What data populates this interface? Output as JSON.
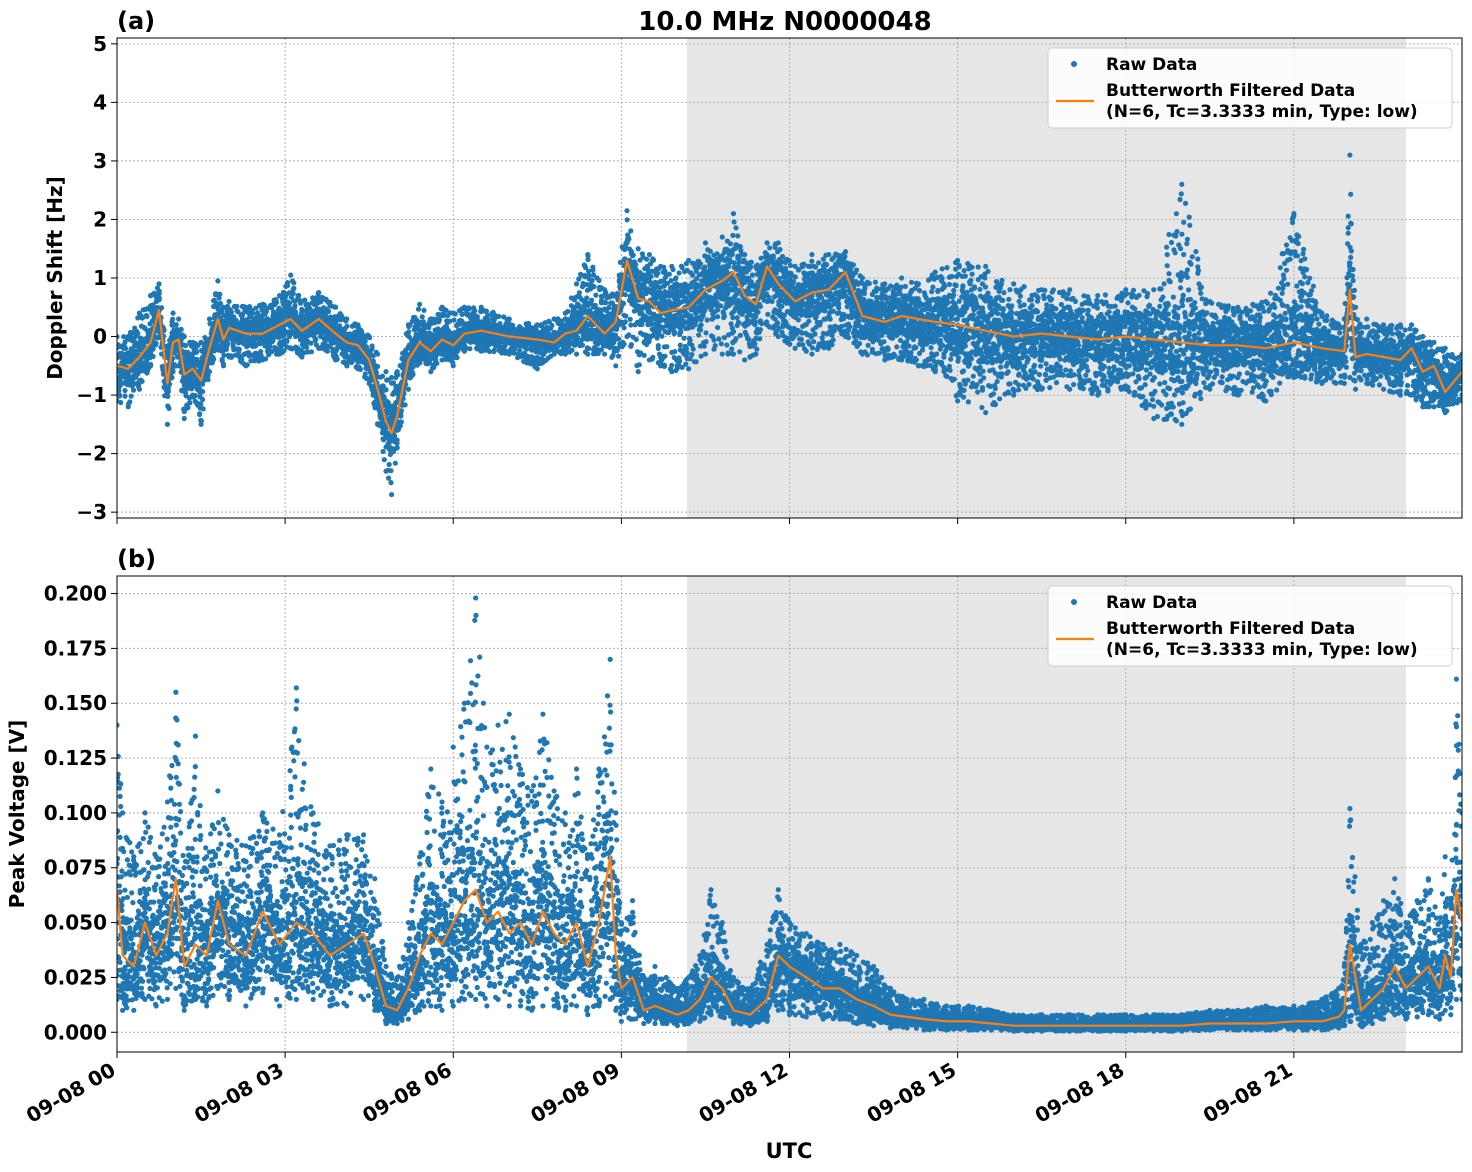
{
  "figure": {
    "title": "10.0 MHz N0000048",
    "xlabel": "UTC",
    "x_tick_labels": [
      "09-08 00",
      "09-08 03",
      "09-08 06",
      "09-08 09",
      "09-08 12",
      "09-08 15",
      "09-08 18",
      "09-08 21"
    ],
    "shaded_region_hours": [
      10.17,
      23.0
    ],
    "colors": {
      "raw": "#1f77b4",
      "filtered": "#ff7f0e",
      "shade": "#e6e6e6",
      "grid": "#b0b0b0"
    }
  },
  "chart_data": [
    {
      "type": "scatter",
      "panel_label": "(a)",
      "ylabel": "Doppler Shift [Hz]",
      "xlim_hours": [
        0,
        24
      ],
      "ylim": [
        -3.1,
        5.1
      ],
      "yticks": [
        -3,
        -2,
        -1,
        0,
        1,
        2,
        3,
        4,
        5
      ],
      "ytick_labels": [
        "−3",
        "−2",
        "−1",
        "0",
        "1",
        "2",
        "3",
        "4",
        "5"
      ],
      "grid": true,
      "legend_position": "top-right",
      "legend": [
        "Raw Data",
        "Butterworth Filtered Data",
        "(N=6, Tc=3.3333 min, Type: low)"
      ],
      "series": [
        {
          "name": "Butterworth Filtered Data",
          "kind": "line",
          "x_hours": [
            0,
            0.2,
            0.4,
            0.6,
            0.75,
            0.9,
            1.0,
            1.1,
            1.2,
            1.35,
            1.5,
            1.65,
            1.8,
            1.9,
            2.0,
            2.3,
            2.6,
            2.9,
            3.1,
            3.3,
            3.6,
            3.9,
            4.1,
            4.3,
            4.5,
            4.65,
            4.8,
            4.9,
            5.0,
            5.2,
            5.4,
            5.6,
            5.8,
            6.0,
            6.2,
            6.5,
            7.0,
            7.5,
            7.8,
            8.0,
            8.2,
            8.4,
            8.7,
            8.9,
            9.1,
            9.3,
            9.5,
            9.7,
            9.9,
            10.2,
            10.5,
            10.8,
            11.0,
            11.2,
            11.4,
            11.6,
            11.8,
            12.1,
            12.4,
            12.7,
            13.0,
            13.3,
            13.7,
            14.0,
            14.3,
            14.6,
            15.0,
            15.5,
            16.0,
            16.5,
            17.0,
            17.5,
            18.0,
            18.5,
            19.0,
            19.5,
            20.0,
            20.5,
            21.0,
            21.5,
            21.9,
            22.0,
            22.1,
            22.3,
            22.6,
            22.9,
            23.1,
            23.3,
            23.5,
            23.7,
            24.0
          ],
          "y": [
            -0.5,
            -0.55,
            -0.35,
            -0.1,
            0.45,
            -0.8,
            -0.1,
            -0.05,
            -0.65,
            -0.55,
            -0.75,
            -0.2,
            0.3,
            -0.05,
            0.15,
            0.05,
            0.05,
            0.2,
            0.3,
            0.1,
            0.3,
            0.05,
            -0.1,
            -0.15,
            -0.4,
            -0.9,
            -1.45,
            -1.65,
            -1.35,
            -0.4,
            -0.1,
            -0.25,
            -0.05,
            -0.15,
            0.05,
            0.1,
            0.0,
            -0.05,
            -0.1,
            0.05,
            0.1,
            0.35,
            0.05,
            0.25,
            1.3,
            0.65,
            0.6,
            0.4,
            0.45,
            0.5,
            0.8,
            0.95,
            1.1,
            0.7,
            0.55,
            1.2,
            0.9,
            0.6,
            0.75,
            0.8,
            1.1,
            0.35,
            0.25,
            0.35,
            0.3,
            0.25,
            0.2,
            0.1,
            0.0,
            0.05,
            0.0,
            -0.05,
            0.0,
            -0.05,
            -0.1,
            -0.15,
            -0.15,
            -0.2,
            -0.1,
            -0.2,
            -0.25,
            0.8,
            -0.35,
            -0.3,
            -0.35,
            -0.4,
            -0.2,
            -0.6,
            -0.5,
            -0.95,
            -0.6
          ]
        },
        {
          "name": "Raw Data",
          "kind": "points",
          "x_hours": [
            0,
            0.2,
            0.4,
            0.6,
            0.75,
            0.9,
            1.0,
            1.1,
            1.2,
            1.35,
            1.5,
            1.65,
            1.8,
            1.9,
            2.0,
            2.3,
            2.6,
            2.9,
            3.1,
            3.3,
            3.6,
            3.9,
            4.1,
            4.3,
            4.5,
            4.65,
            4.8,
            4.9,
            5.0,
            5.2,
            5.4,
            5.6,
            5.8,
            6.0,
            6.2,
            6.5,
            7.0,
            7.5,
            7.8,
            8.0,
            8.2,
            8.4,
            8.7,
            8.9,
            9.1,
            9.3,
            9.5,
            9.7,
            9.9,
            10.2,
            10.5,
            10.8,
            11.0,
            11.2,
            11.4,
            11.6,
            11.8,
            12.1,
            12.4,
            12.7,
            13.0,
            13.3,
            13.7,
            14.0,
            14.3,
            14.6,
            15.0,
            15.5,
            16.0,
            16.5,
            17.0,
            17.5,
            18.0,
            18.5,
            19.0,
            19.5,
            20.0,
            20.5,
            21.0,
            21.5,
            21.9,
            22.0,
            22.1,
            22.3,
            22.6,
            22.9,
            23.1,
            23.3,
            23.5,
            23.7,
            24.0
          ],
          "y_low": [
            -1.1,
            -1.2,
            -0.9,
            -0.5,
            0.0,
            -1.5,
            -0.6,
            -0.5,
            -1.4,
            -1.0,
            -1.5,
            -0.6,
            -0.2,
            -0.5,
            -0.35,
            -0.5,
            -0.4,
            -0.3,
            -0.2,
            -0.35,
            -0.2,
            -0.4,
            -0.5,
            -0.55,
            -0.8,
            -1.5,
            -2.3,
            -2.7,
            -1.9,
            -0.9,
            -0.45,
            -0.6,
            -0.4,
            -0.5,
            -0.25,
            -0.25,
            -0.3,
            -0.55,
            -0.3,
            -0.3,
            -0.3,
            -0.3,
            -0.3,
            -0.5,
            0.0,
            -0.6,
            -0.4,
            -0.5,
            -0.6,
            -0.55,
            -0.3,
            -0.3,
            -0.3,
            -0.4,
            -0.3,
            0.2,
            0.0,
            -0.2,
            -0.3,
            -0.2,
            0.0,
            -0.3,
            -0.4,
            -0.4,
            -0.5,
            -0.6,
            -1.1,
            -1.3,
            -1.0,
            -0.9,
            -0.9,
            -1.0,
            -0.9,
            -1.4,
            -1.5,
            -0.9,
            -1.0,
            -1.1,
            -0.7,
            -0.8,
            -0.8,
            -0.7,
            -0.9,
            -0.8,
            -0.9,
            -1.0,
            -1.0,
            -1.2,
            -1.2,
            -1.3,
            -1.1
          ],
          "y_high": [
            0.0,
            0.0,
            0.4,
            0.7,
            0.9,
            -0.2,
            0.4,
            0.3,
            0.0,
            -0.1,
            -0.1,
            0.3,
            0.95,
            0.5,
            0.6,
            0.5,
            0.55,
            0.7,
            1.05,
            0.6,
            0.75,
            0.5,
            0.3,
            0.2,
            0.0,
            -0.3,
            -0.6,
            -0.7,
            -0.6,
            0.2,
            0.55,
            0.3,
            0.5,
            0.4,
            0.5,
            0.5,
            0.3,
            0.2,
            0.3,
            0.4,
            0.9,
            1.4,
            0.8,
            0.7,
            2.15,
            1.5,
            1.4,
            1.2,
            1.2,
            1.3,
            1.6,
            1.7,
            2.1,
            1.4,
            1.2,
            1.6,
            1.6,
            1.2,
            1.4,
            1.4,
            1.45,
            1.0,
            0.9,
            1.0,
            0.9,
            1.1,
            1.3,
            1.2,
            0.9,
            0.8,
            0.8,
            0.7,
            0.8,
            0.8,
            2.6,
            0.6,
            0.5,
            0.6,
            2.1,
            0.4,
            0.3,
            3.1,
            0.5,
            0.3,
            0.2,
            0.2,
            0.2,
            0.0,
            -0.1,
            -0.2,
            -0.3
          ]
        }
      ]
    },
    {
      "type": "scatter",
      "panel_label": "(b)",
      "ylabel": "Peak Voltage [V]",
      "xlim_hours": [
        0,
        24
      ],
      "ylim": [
        -0.009,
        0.208
      ],
      "yticks": [
        0.0,
        0.025,
        0.05,
        0.075,
        0.1,
        0.125,
        0.15,
        0.175,
        0.2
      ],
      "ytick_labels": [
        "0.000",
        "0.025",
        "0.050",
        "0.075",
        "0.100",
        "0.125",
        "0.150",
        "0.175",
        "0.200"
      ],
      "grid": true,
      "legend_position": "top-right",
      "legend": [
        "Raw Data",
        "Butterworth Filtered Data",
        "(N=6, Tc=3.3333 min, Type: low)"
      ],
      "series": [
        {
          "name": "Butterworth Filtered Data",
          "kind": "line",
          "x_hours": [
            0,
            0.1,
            0.3,
            0.5,
            0.7,
            0.9,
            1.05,
            1.2,
            1.4,
            1.6,
            1.8,
            2.0,
            2.3,
            2.6,
            2.9,
            3.2,
            3.5,
            3.8,
            4.1,
            4.4,
            4.6,
            4.8,
            5.0,
            5.2,
            5.4,
            5.6,
            5.8,
            6.0,
            6.2,
            6.4,
            6.6,
            6.8,
            7.0,
            7.2,
            7.4,
            7.6,
            7.8,
            8.0,
            8.2,
            8.4,
            8.6,
            8.8,
            8.9,
            9.0,
            9.2,
            9.4,
            9.6,
            9.8,
            10.0,
            10.2,
            10.4,
            10.6,
            10.8,
            11.0,
            11.3,
            11.6,
            11.8,
            12.0,
            12.3,
            12.6,
            12.9,
            13.2,
            13.5,
            13.8,
            14.1,
            14.4,
            14.8,
            15.2,
            15.6,
            16.0,
            16.5,
            17.0,
            17.5,
            18.0,
            18.5,
            19.0,
            19.5,
            20.0,
            20.5,
            21.0,
            21.5,
            21.8,
            21.9,
            22.0,
            22.2,
            22.4,
            22.6,
            22.8,
            23.0,
            23.2,
            23.4,
            23.6,
            23.7,
            23.8,
            23.9,
            24.0
          ],
          "y": [
            0.065,
            0.035,
            0.03,
            0.05,
            0.035,
            0.045,
            0.07,
            0.03,
            0.04,
            0.035,
            0.06,
            0.04,
            0.035,
            0.055,
            0.04,
            0.05,
            0.045,
            0.035,
            0.04,
            0.045,
            0.03,
            0.012,
            0.01,
            0.02,
            0.035,
            0.045,
            0.04,
            0.05,
            0.06,
            0.065,
            0.05,
            0.055,
            0.045,
            0.05,
            0.04,
            0.055,
            0.045,
            0.04,
            0.05,
            0.03,
            0.05,
            0.08,
            0.035,
            0.02,
            0.025,
            0.01,
            0.012,
            0.01,
            0.008,
            0.01,
            0.015,
            0.025,
            0.02,
            0.01,
            0.008,
            0.015,
            0.035,
            0.03,
            0.025,
            0.02,
            0.02,
            0.015,
            0.012,
            0.008,
            0.007,
            0.006,
            0.005,
            0.005,
            0.004,
            0.003,
            0.003,
            0.003,
            0.003,
            0.003,
            0.003,
            0.003,
            0.004,
            0.004,
            0.004,
            0.005,
            0.005,
            0.007,
            0.01,
            0.04,
            0.01,
            0.015,
            0.02,
            0.03,
            0.02,
            0.025,
            0.03,
            0.02,
            0.035,
            0.025,
            0.065,
            0.05
          ]
        },
        {
          "name": "Raw Data",
          "kind": "points",
          "x_hours": [
            0,
            0.1,
            0.3,
            0.5,
            0.7,
            0.9,
            1.05,
            1.2,
            1.4,
            1.6,
            1.8,
            2.0,
            2.3,
            2.6,
            2.9,
            3.2,
            3.5,
            3.8,
            4.1,
            4.4,
            4.6,
            4.8,
            5.0,
            5.2,
            5.4,
            5.6,
            5.8,
            6.0,
            6.2,
            6.4,
            6.6,
            6.8,
            7.0,
            7.2,
            7.4,
            7.6,
            7.8,
            8.0,
            8.2,
            8.4,
            8.6,
            8.8,
            8.9,
            9.0,
            9.2,
            9.4,
            9.6,
            9.8,
            10.0,
            10.2,
            10.4,
            10.6,
            10.8,
            11.0,
            11.3,
            11.6,
            11.8,
            12.0,
            12.3,
            12.6,
            12.9,
            13.2,
            13.5,
            13.8,
            14.1,
            14.4,
            14.8,
            15.2,
            15.6,
            16.0,
            16.5,
            17.0,
            17.5,
            18.0,
            18.5,
            19.0,
            19.5,
            20.0,
            20.5,
            21.0,
            21.5,
            21.8,
            21.9,
            22.0,
            22.2,
            22.4,
            22.6,
            22.8,
            23.0,
            23.2,
            23.4,
            23.6,
            23.7,
            23.8,
            23.9,
            24.0
          ],
          "y_low": [
            0.015,
            0.01,
            0.01,
            0.015,
            0.012,
            0.015,
            0.02,
            0.01,
            0.015,
            0.012,
            0.02,
            0.015,
            0.012,
            0.018,
            0.012,
            0.015,
            0.015,
            0.012,
            0.012,
            0.015,
            0.01,
            0.004,
            0.004,
            0.006,
            0.01,
            0.012,
            0.01,
            0.012,
            0.015,
            0.015,
            0.012,
            0.015,
            0.012,
            0.012,
            0.01,
            0.012,
            0.012,
            0.01,
            0.012,
            0.008,
            0.012,
            0.015,
            0.01,
            0.005,
            0.006,
            0.004,
            0.004,
            0.004,
            0.003,
            0.004,
            0.005,
            0.008,
            0.007,
            0.004,
            0.003,
            0.005,
            0.01,
            0.008,
            0.007,
            0.006,
            0.006,
            0.004,
            0.003,
            0.002,
            0.002,
            0.001,
            0.001,
            0.001,
            0.001,
            0.0005,
            0.0005,
            0.0005,
            0.0005,
            0.0005,
            0.0005,
            0.0005,
            0.001,
            0.001,
            0.001,
            0.001,
            0.001,
            0.002,
            0.003,
            0.005,
            0.003,
            0.004,
            0.006,
            0.008,
            0.006,
            0.007,
            0.008,
            0.006,
            0.01,
            0.008,
            0.015,
            0.015
          ],
          "y_high": [
            0.14,
            0.1,
            0.08,
            0.1,
            0.08,
            0.105,
            0.155,
            0.075,
            0.135,
            0.08,
            0.11,
            0.09,
            0.085,
            0.1,
            0.09,
            0.157,
            0.1,
            0.085,
            0.09,
            0.09,
            0.07,
            0.03,
            0.025,
            0.05,
            0.08,
            0.12,
            0.105,
            0.13,
            0.15,
            0.198,
            0.13,
            0.14,
            0.145,
            0.12,
            0.11,
            0.145,
            0.11,
            0.1,
            0.12,
            0.08,
            0.12,
            0.17,
            0.1,
            0.05,
            0.06,
            0.025,
            0.03,
            0.025,
            0.02,
            0.025,
            0.035,
            0.065,
            0.05,
            0.025,
            0.02,
            0.04,
            0.065,
            0.05,
            0.045,
            0.04,
            0.04,
            0.035,
            0.03,
            0.02,
            0.015,
            0.015,
            0.012,
            0.012,
            0.01,
            0.008,
            0.008,
            0.008,
            0.008,
            0.008,
            0.008,
            0.008,
            0.01,
            0.01,
            0.012,
            0.012,
            0.015,
            0.02,
            0.03,
            0.102,
            0.04,
            0.05,
            0.06,
            0.07,
            0.05,
            0.06,
            0.07,
            0.05,
            0.08,
            0.06,
            0.161,
            0.1
          ]
        }
      ]
    }
  ]
}
